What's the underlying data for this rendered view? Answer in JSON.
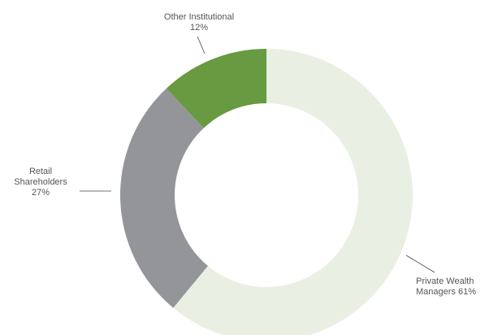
{
  "chart_data": {
    "type": "donut",
    "categories": [
      "Private Wealth Managers",
      "Retail Shareholders",
      "Other Institutional"
    ],
    "values": [
      61,
      27,
      12
    ],
    "value_labels": [
      "61%",
      "27%",
      "12%"
    ],
    "colors": [
      "#e9efe2",
      "#939598",
      "#679a41"
    ]
  }
}
